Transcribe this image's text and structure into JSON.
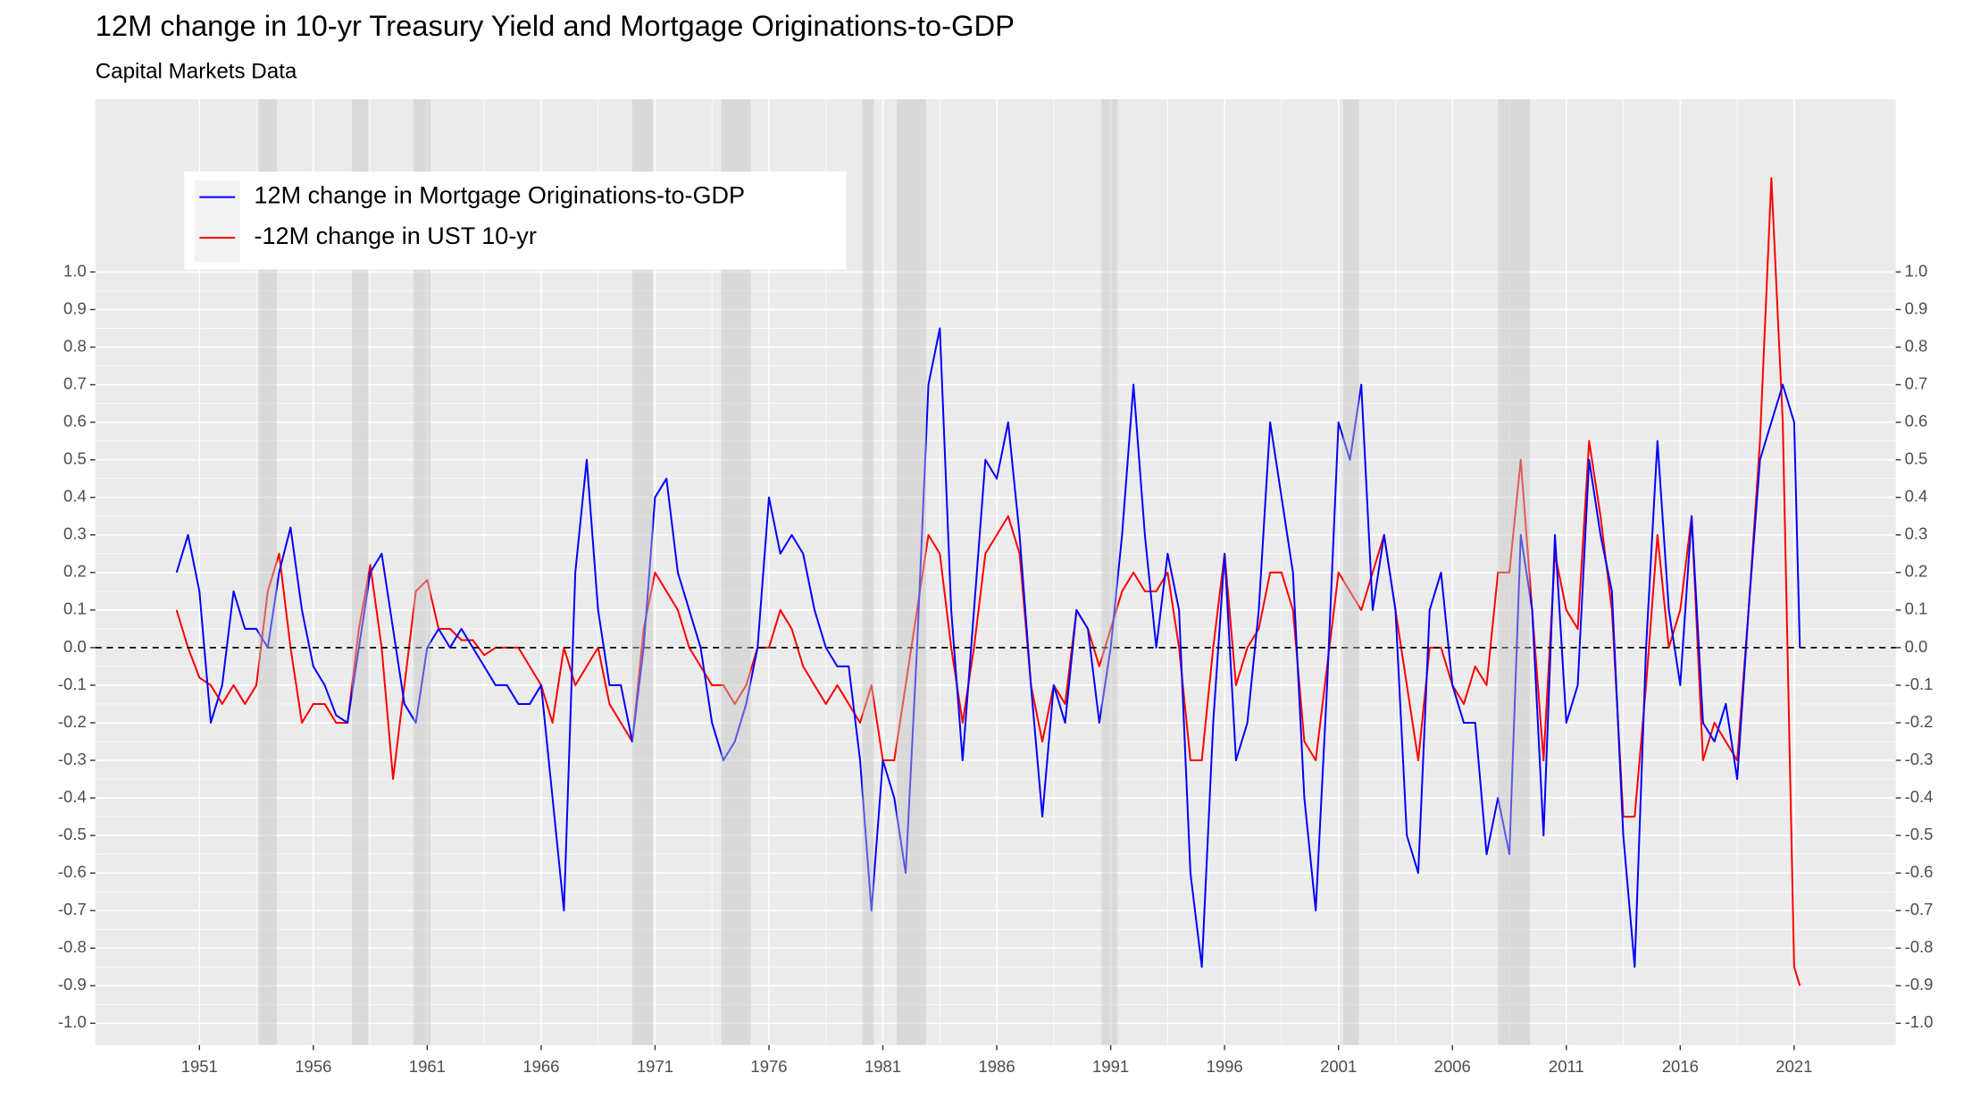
{
  "chart_data": {
    "type": "line",
    "title": "12M change in 10-yr Treasury Yield and Mortgage Originations-to-GDP",
    "subtitle": "Capital Markets Data",
    "x": [
      1950,
      1950.5,
      1951,
      1951.5,
      1952,
      1952.5,
      1953,
      1953.5,
      1954,
      1954.5,
      1955,
      1955.5,
      1956,
      1956.5,
      1957,
      1957.5,
      1958,
      1958.5,
      1959,
      1959.5,
      1960,
      1960.5,
      1961,
      1961.5,
      1962,
      1962.5,
      1963,
      1963.5,
      1964,
      1964.5,
      1965,
      1965.5,
      1966,
      1966.5,
      1967,
      1967.5,
      1968,
      1968.5,
      1969,
      1969.5,
      1970,
      1970.5,
      1971,
      1971.5,
      1972,
      1972.5,
      1973,
      1973.5,
      1974,
      1974.5,
      1975,
      1975.5,
      1976,
      1976.5,
      1977,
      1977.5,
      1978,
      1978.5,
      1979,
      1979.5,
      1980,
      1980.5,
      1981,
      1981.5,
      1982,
      1982.5,
      1983,
      1983.5,
      1984,
      1984.5,
      1985,
      1985.5,
      1986,
      1986.5,
      1987,
      1987.5,
      1988,
      1988.5,
      1989,
      1989.5,
      1990,
      1990.5,
      1991,
      1991.5,
      1992,
      1992.5,
      1993,
      1993.5,
      1994,
      1994.5,
      1995,
      1995.5,
      1996,
      1996.5,
      1997,
      1997.5,
      1998,
      1998.5,
      1999,
      1999.5,
      2000,
      2000.5,
      2001,
      2001.5,
      2002,
      2002.5,
      2003,
      2003.5,
      2004,
      2004.5,
      2005,
      2005.5,
      2006,
      2006.5,
      2007,
      2007.5,
      2008,
      2008.5,
      2009,
      2009.5,
      2010,
      2010.5,
      2011,
      2011.5,
      2012,
      2012.5,
      2013,
      2013.5,
      2014,
      2014.5,
      2015,
      2015.5,
      2016,
      2016.5,
      2017,
      2017.5,
      2018,
      2018.5,
      2019,
      2019.5,
      2020,
      2020.5,
      2021,
      2021.25
    ],
    "series": [
      {
        "name": "12M change in Mortgage Originations-to-GDP",
        "color": "#0000ff",
        "values": [
          0.2,
          0.3,
          0.15,
          -0.2,
          -0.1,
          0.15,
          0.05,
          0.05,
          0.0,
          0.2,
          0.32,
          0.1,
          -0.05,
          -0.1,
          -0.18,
          -0.2,
          0.0,
          0.2,
          0.25,
          0.05,
          -0.15,
          -0.2,
          0.0,
          0.05,
          0.0,
          0.05,
          0.0,
          -0.05,
          -0.1,
          -0.1,
          -0.15,
          -0.15,
          -0.1,
          -0.4,
          -0.7,
          0.2,
          0.5,
          0.1,
          -0.1,
          -0.1,
          -0.25,
          0.0,
          0.4,
          0.45,
          0.2,
          0.1,
          0.0,
          -0.2,
          -0.3,
          -0.25,
          -0.15,
          0.0,
          0.4,
          0.25,
          0.3,
          0.25,
          0.1,
          0.0,
          -0.05,
          -0.05,
          -0.3,
          -0.7,
          -0.3,
          -0.4,
          -0.6,
          0.0,
          0.7,
          0.85,
          0.1,
          -0.3,
          0.1,
          0.5,
          0.45,
          0.6,
          0.3,
          -0.1,
          -0.45,
          -0.1,
          -0.2,
          0.1,
          0.05,
          -0.2,
          0.0,
          0.3,
          0.7,
          0.3,
          0.0,
          0.25,
          0.1,
          -0.6,
          -0.85,
          -0.2,
          0.25,
          -0.3,
          -0.2,
          0.1,
          0.6,
          0.4,
          0.2,
          -0.4,
          -0.7,
          -0.1,
          0.6,
          0.5,
          0.7,
          0.1,
          0.3,
          0.1,
          -0.5,
          -0.6,
          0.1,
          0.2,
          -0.1,
          -0.2,
          -0.2,
          -0.55,
          -0.4,
          -0.55,
          0.3,
          0.1,
          -0.5,
          0.3,
          -0.2,
          -0.1,
          0.5,
          0.3,
          0.15,
          -0.5,
          -0.85,
          0.0,
          0.55,
          0.1,
          -0.1,
          0.35,
          -0.2,
          -0.25,
          -0.15,
          -0.35,
          0.1,
          0.5,
          0.6,
          0.7,
          0.6,
          0.0
        ]
      },
      {
        "name": "-12M change in UST 10-yr",
        "color": "#ff0000",
        "values": [
          0.1,
          0.0,
          -0.08,
          -0.1,
          -0.15,
          -0.1,
          -0.15,
          -0.1,
          0.15,
          0.25,
          0.0,
          -0.2,
          -0.15,
          -0.15,
          -0.2,
          -0.2,
          0.05,
          0.22,
          0.0,
          -0.35,
          -0.1,
          0.15,
          0.18,
          0.05,
          0.05,
          0.02,
          0.02,
          -0.02,
          0.0,
          0.0,
          0.0,
          -0.05,
          -0.1,
          -0.2,
          0.0,
          -0.1,
          -0.05,
          0.0,
          -0.15,
          -0.2,
          -0.25,
          0.05,
          0.2,
          0.15,
          0.1,
          0.0,
          -0.05,
          -0.1,
          -0.1,
          -0.15,
          -0.1,
          0.0,
          0.0,
          0.1,
          0.05,
          -0.05,
          -0.1,
          -0.15,
          -0.1,
          -0.15,
          -0.2,
          -0.1,
          -0.3,
          -0.3,
          -0.1,
          0.1,
          0.3,
          0.25,
          0.0,
          -0.2,
          0.0,
          0.25,
          0.3,
          0.35,
          0.25,
          -0.1,
          -0.25,
          -0.1,
          -0.15,
          0.1,
          0.05,
          -0.05,
          0.05,
          0.15,
          0.2,
          0.15,
          0.15,
          0.2,
          0.0,
          -0.3,
          -0.3,
          0.0,
          0.25,
          -0.1,
          0.0,
          0.05,
          0.2,
          0.2,
          0.1,
          -0.25,
          -0.3,
          -0.05,
          0.2,
          0.15,
          0.1,
          0.2,
          0.3,
          0.1,
          -0.1,
          -0.3,
          0.0,
          0.0,
          -0.1,
          -0.15,
          -0.05,
          -0.1,
          0.2,
          0.2,
          0.5,
          0.1,
          -0.3,
          0.25,
          0.1,
          0.05,
          0.55,
          0.35,
          0.1,
          -0.45,
          -0.45,
          -0.1,
          0.3,
          0.0,
          0.1,
          0.35,
          -0.3,
          -0.2,
          -0.25,
          -0.3,
          0.1,
          0.55,
          1.25,
          0.6,
          -0.85,
          -0.9
        ]
      }
    ],
    "xlim": [
      1946.43,
      2025.46
    ],
    "xticks": [
      1951,
      1956,
      1961,
      1966,
      1971,
      1976,
      1981,
      1986,
      1991,
      1996,
      2001,
      2006,
      2011,
      2016,
      2021
    ],
    "ylim": [
      -1.058,
      1.46
    ],
    "yticks": [
      {
        "value": -1,
        "label": "-1.0"
      },
      {
        "value": -0.9,
        "label": "-0.9"
      },
      {
        "value": -0.8,
        "label": "-0.8"
      },
      {
        "value": -0.7,
        "label": "-0.7"
      },
      {
        "value": -0.6,
        "label": "-0.6"
      },
      {
        "value": -0.5,
        "label": "-0.5"
      },
      {
        "value": -0.4,
        "label": "-0.4"
      },
      {
        "value": -0.3,
        "label": "-0.3"
      },
      {
        "value": -0.2,
        "label": "-0.2"
      },
      {
        "value": -0.1,
        "label": "-0.1"
      },
      {
        "value": 0,
        "label": "0.0"
      },
      {
        "value": 0.1,
        "label": "0.1"
      },
      {
        "value": 0.2,
        "label": "0.2"
      },
      {
        "value": 0.3,
        "label": "0.3"
      },
      {
        "value": 0.4,
        "label": "0.4"
      },
      {
        "value": 0.5,
        "label": "0.5"
      },
      {
        "value": 0.6,
        "label": "0.6"
      },
      {
        "value": 0.7,
        "label": "0.7"
      },
      {
        "value": 0.8,
        "label": "0.8"
      },
      {
        "value": 0.9,
        "label": "0.9"
      },
      {
        "value": 1,
        "label": "1.0"
      }
    ],
    "hline": 0,
    "recessions": [
      [
        1953.6,
        1954.4
      ],
      [
        1957.7,
        1958.4
      ],
      [
        1960.4,
        1961.15
      ],
      [
        1970.0,
        1970.9
      ],
      [
        1973.9,
        1975.2
      ],
      [
        1980.1,
        1980.6
      ],
      [
        1981.6,
        1982.9
      ],
      [
        1990.6,
        1991.3
      ],
      [
        2001.2,
        2001.9
      ],
      [
        2008.0,
        2009.4
      ]
    ],
    "grid": true,
    "legend_position": "top-left"
  }
}
